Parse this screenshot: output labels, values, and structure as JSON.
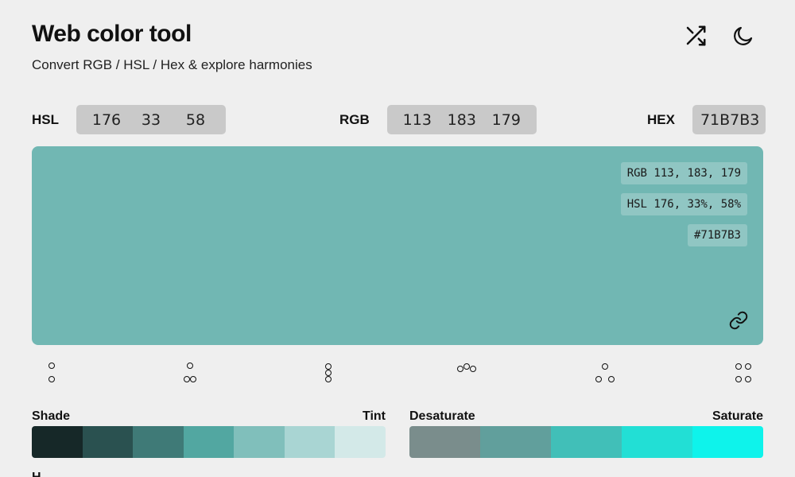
{
  "header": {
    "title": "Web color tool",
    "subtitle": "Convert RGB / HSL / Hex & explore harmonies"
  },
  "icons": {
    "shuffle": "shuffle-icon",
    "theme": "moon-icon",
    "link": "link-icon"
  },
  "fields": {
    "hsl": {
      "label": "HSL",
      "h": "176",
      "s": "33",
      "l": "58"
    },
    "rgb": {
      "label": "RGB",
      "r": "113",
      "g": "183",
      "b": "179"
    },
    "hex": {
      "label": "HEX",
      "value": "71B7B3"
    }
  },
  "preview": {
    "color": "#71B7B3",
    "rgb_text": "RGB 113, 183, 179",
    "hsl_text": "HSL 176, 33%, 58%",
    "hex_text": "#71B7B3"
  },
  "harmonies": [
    "complementary",
    "split-complementary",
    "triadic",
    "analogous",
    "tetradic-rect",
    "square"
  ],
  "shade_tint": {
    "left_label": "Shade",
    "right_label": "Tint",
    "swatches": [
      "#162828",
      "#2a5150",
      "#3f7a77",
      "#52a7a1",
      "#80bfbb",
      "#a9d5d3",
      "#d3e9e8"
    ]
  },
  "saturation": {
    "left_label": "Desaturate",
    "right_label": "Saturate",
    "swatches": [
      "#7a8d8c",
      "#619f9c",
      "#41bfb8",
      "#22dfd5",
      "#0ef3eb"
    ]
  },
  "next_section": {
    "label": "H"
  }
}
